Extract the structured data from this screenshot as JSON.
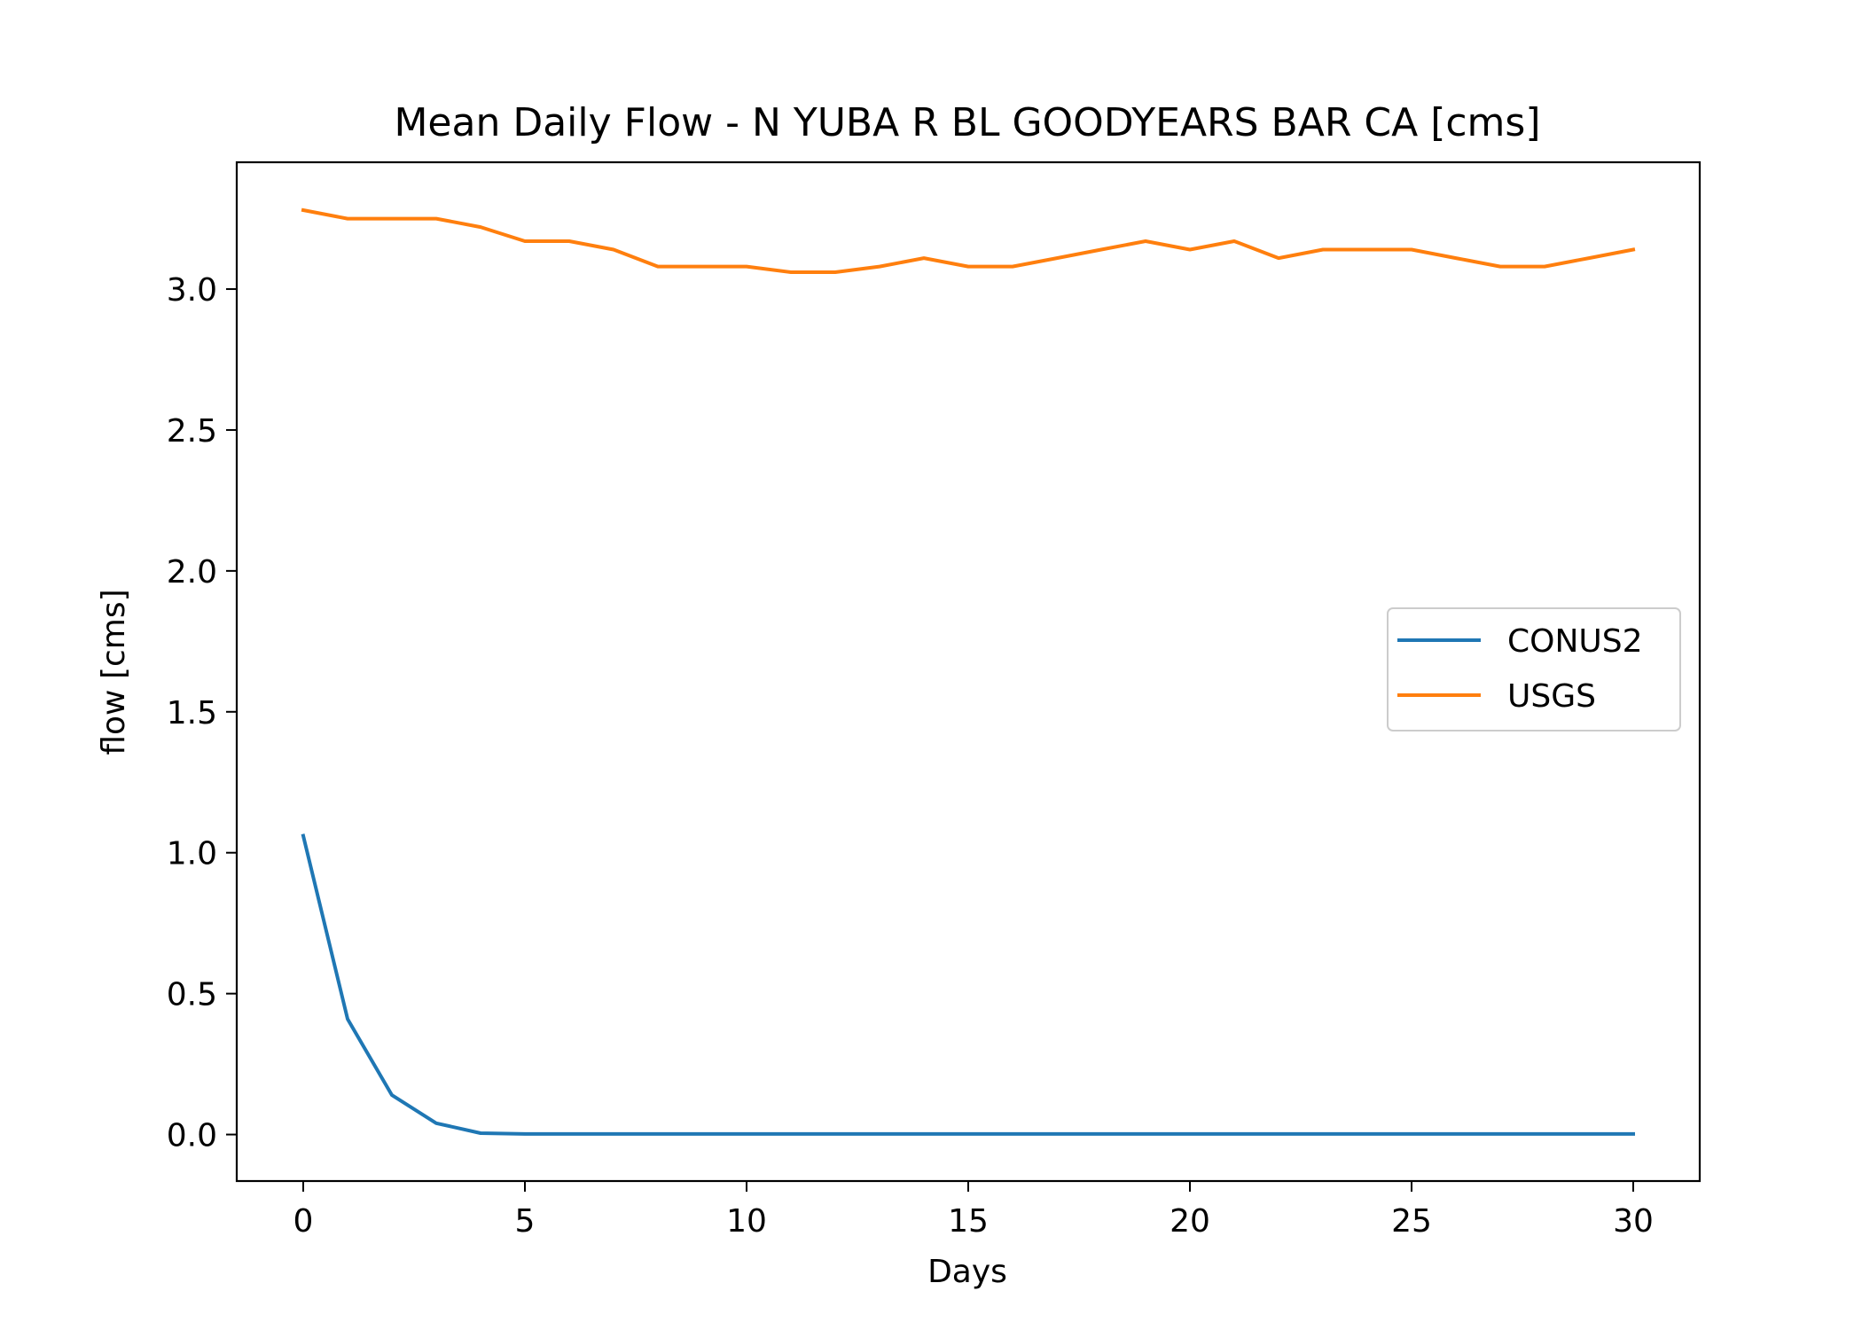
{
  "chart_data": {
    "type": "line",
    "title": "Mean Daily Flow - N YUBA R BL GOODYEARS BAR CA [cms]",
    "xlabel": "Days",
    "ylabel": "flow [cms]",
    "xlim": [
      -1.5,
      31.5
    ],
    "ylim": [
      -0.165,
      3.45
    ],
    "x_ticks": [
      0,
      5,
      10,
      15,
      20,
      25,
      30
    ],
    "x_tick_labels": [
      "0",
      "5",
      "10",
      "15",
      "20",
      "25",
      "30"
    ],
    "y_ticks": [
      0.0,
      0.5,
      1.0,
      1.5,
      2.0,
      2.5,
      3.0
    ],
    "y_tick_labels": [
      "0.0",
      "0.5",
      "1.0",
      "1.5",
      "2.0",
      "2.5",
      "3.0"
    ],
    "grid": false,
    "legend_position": "center-right",
    "x": [
      0,
      1,
      2,
      3,
      4,
      5,
      6,
      7,
      8,
      9,
      10,
      11,
      12,
      13,
      14,
      15,
      16,
      17,
      18,
      19,
      20,
      21,
      22,
      23,
      24,
      25,
      26,
      27,
      28,
      29,
      30
    ],
    "series": [
      {
        "name": "CONUS2",
        "color": "#1f77b4",
        "values": [
          1.06,
          0.41,
          0.14,
          0.04,
          0.005,
          0.002,
          0.002,
          0.002,
          0.002,
          0.002,
          0.002,
          0.002,
          0.002,
          0.002,
          0.002,
          0.002,
          0.002,
          0.002,
          0.002,
          0.002,
          0.002,
          0.002,
          0.002,
          0.002,
          0.002,
          0.002,
          0.002,
          0.002,
          0.002,
          0.002,
          0.002
        ]
      },
      {
        "name": "USGS",
        "color": "#ff7f0e",
        "values": [
          3.28,
          3.25,
          3.25,
          3.25,
          3.22,
          3.17,
          3.17,
          3.14,
          3.08,
          3.08,
          3.08,
          3.06,
          3.06,
          3.08,
          3.11,
          3.08,
          3.08,
          3.11,
          3.14,
          3.17,
          3.14,
          3.17,
          3.11,
          3.14,
          3.14,
          3.14,
          3.11,
          3.08,
          3.08,
          3.11,
          3.14
        ]
      }
    ]
  }
}
